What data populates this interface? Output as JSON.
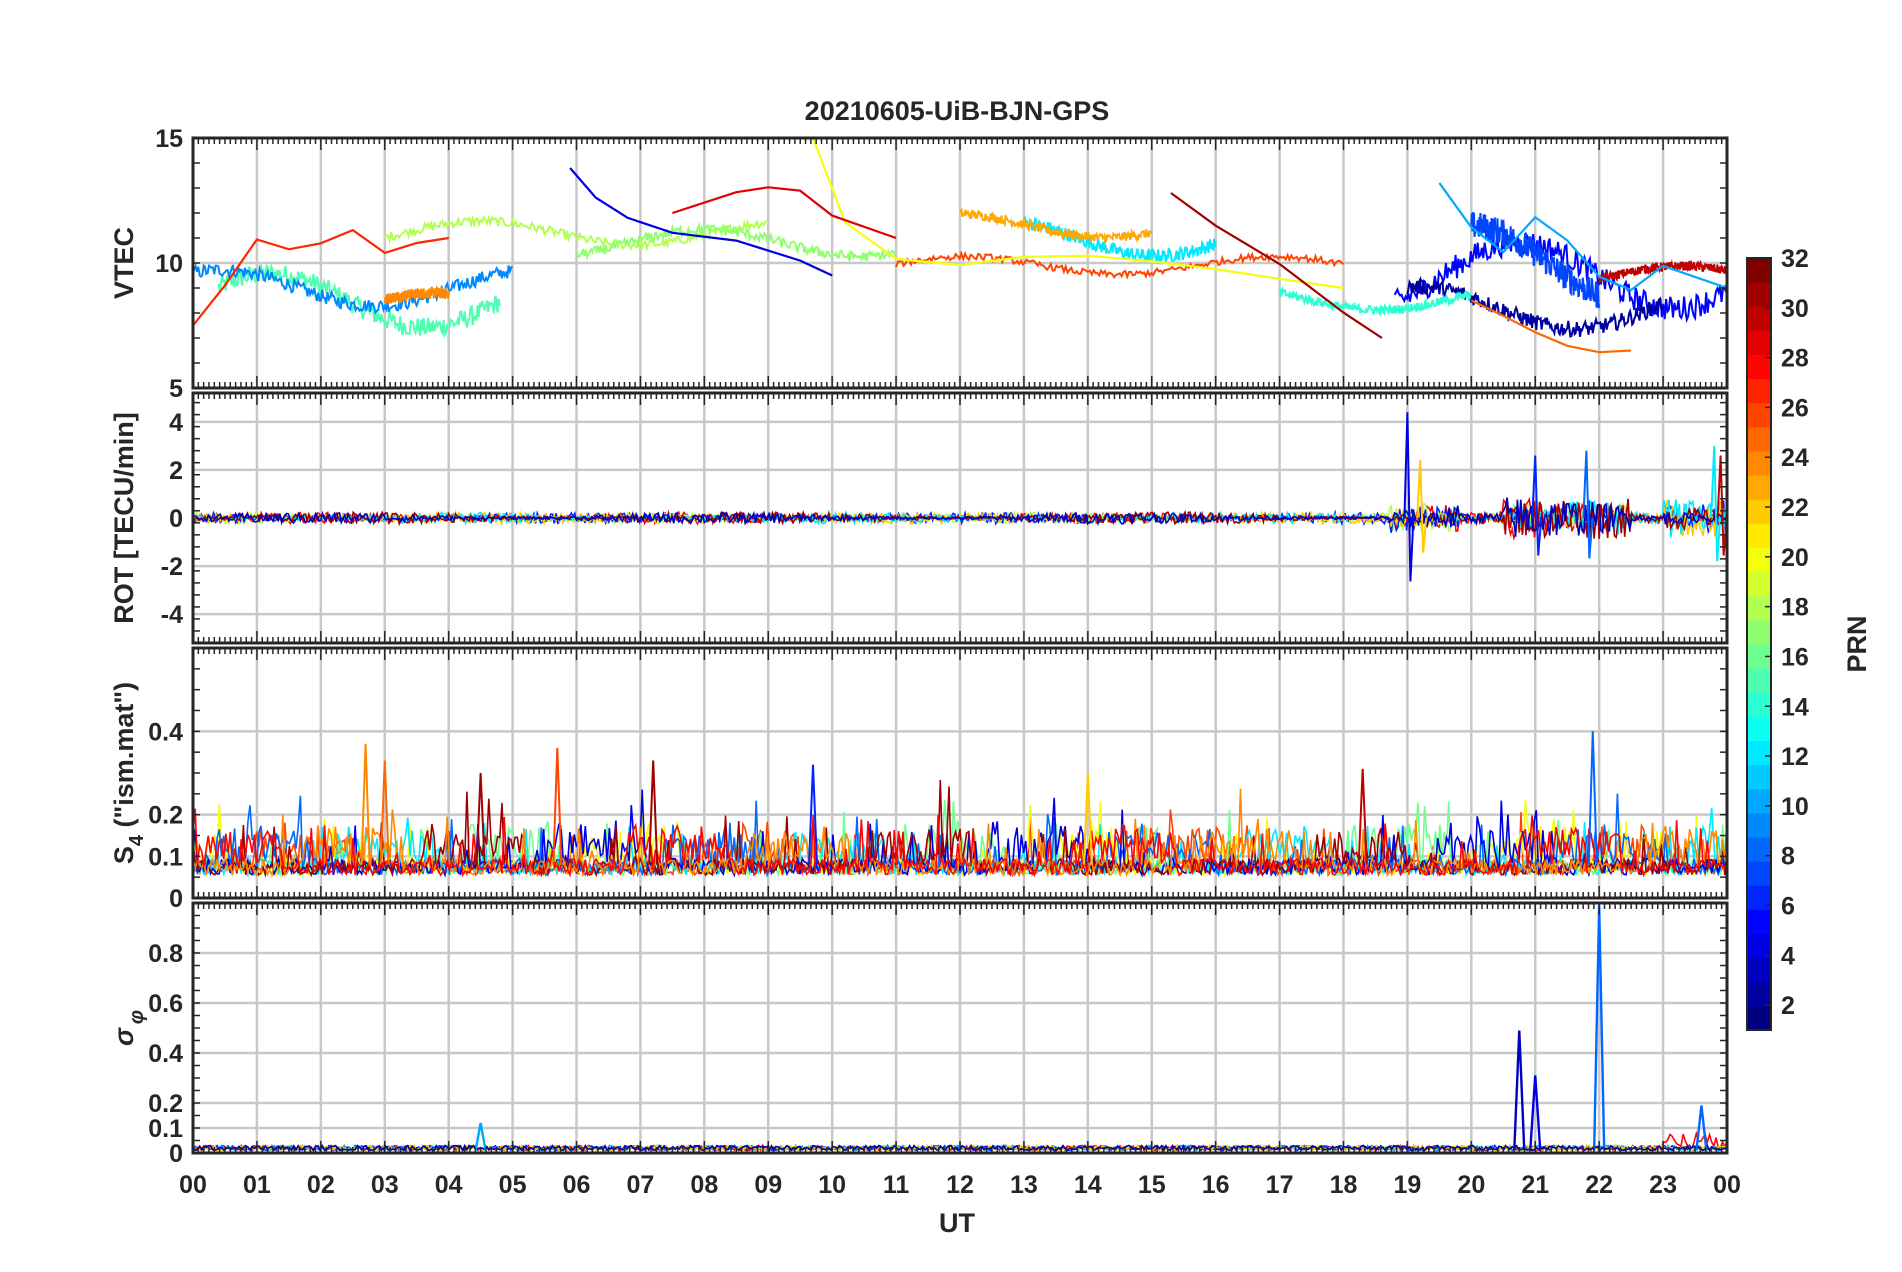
{
  "chart_data": {
    "type": "line",
    "title": "20210605-UiB-BJN-GPS",
    "xlabel": "UT",
    "x_range": [
      0,
      24
    ],
    "x_tick_labels": [
      "00",
      "01",
      "02",
      "03",
      "04",
      "05",
      "06",
      "07",
      "08",
      "09",
      "10",
      "11",
      "12",
      "13",
      "14",
      "15",
      "16",
      "17",
      "18",
      "19",
      "20",
      "21",
      "22",
      "23",
      "00"
    ],
    "grid": true,
    "colormap": "jet",
    "colorbar": {
      "label": "PRN",
      "range": [
        1,
        32
      ],
      "tick_labels": [
        "2",
        "4",
        "6",
        "8",
        "10",
        "12",
        "14",
        "16",
        "18",
        "20",
        "22",
        "24",
        "26",
        "28",
        "30",
        "32"
      ],
      "placement": "right"
    },
    "panels": [
      {
        "ylabel": "VTEC",
        "ylim": [
          5,
          15
        ],
        "y_ticks": [
          "5",
          "10",
          "15"
        ],
        "series_note": "multi-satellite VTEC traces, colored by PRN",
        "series": [
          {
            "prn": 27,
            "x": [
              0,
              0.5,
              1,
              1.5,
              2,
              2.5,
              3,
              3.5,
              4
            ],
            "y": [
              7.5,
              9,
              10.8,
              10.6,
              10.9,
              11.2,
              10.5,
              10.8,
              11
            ]
          },
          {
            "prn": 4,
            "x": [
              5.9,
              6.3,
              6.8,
              7.5,
              8.5,
              9.5,
              10
            ],
            "y": [
              13.8,
              12.5,
              11.8,
              11.3,
              10.8,
              10.2,
              9.5
            ]
          },
          {
            "prn": 20,
            "x": [
              9.7,
              10.2,
              11,
              12,
              13,
              14,
              15,
              16,
              17,
              18
            ],
            "y": [
              15,
              11.5,
              10.2,
              9.8,
              10.3,
              10.4,
              10,
              9.8,
              9.5,
              9
            ]
          },
          {
            "prn": 29,
            "x": [
              7.5,
              8.5,
              9,
              9.5,
              10,
              11
            ],
            "y": [
              12,
              12.8,
              13,
              12.8,
              12,
              11
            ]
          },
          {
            "prn": 10,
            "x": [
              19.5,
              20,
              20.5,
              21,
              21.5,
              22,
              22.5,
              23,
              24
            ],
            "y": [
              13.2,
              11.5,
              10.5,
              11.8,
              10.8,
              9.5,
              9,
              9.8,
              9
            ]
          },
          {
            "prn": 25,
            "x": [
              20,
              20.5,
              21,
              21.5,
              22,
              22.5
            ],
            "y": [
              8.5,
              8,
              7.2,
              6.8,
              6.3,
              6.5
            ]
          },
          {
            "prn": 31,
            "x": [
              15.3,
              16,
              17,
              18,
              18.6
            ],
            "y": [
              12.8,
              11.5,
              10,
              8,
              7
            ]
          }
        ]
      },
      {
        "ylabel": "ROT [TECU/min]",
        "ylim": [
          -5.2,
          5.2
        ],
        "y_ticks": [
          "-4",
          "-2",
          "0",
          "2",
          "4"
        ],
        "series_note": "rate of TEC, noisy around 0 with bursts near 19, 21 and 23-24 UT",
        "bursts": [
          {
            "x": 19.0,
            "amplitude": 4.4,
            "prn": 4
          },
          {
            "x": 19.2,
            "amplitude": 2.4,
            "prn": 22
          },
          {
            "x": 21.0,
            "amplitude": 2.6,
            "prn": 6
          },
          {
            "x": 21.8,
            "amplitude": 2.8,
            "prn": 8
          },
          {
            "x": 23.8,
            "amplitude": 3.0,
            "prn": 12
          },
          {
            "x": 23.9,
            "amplitude": 2.6,
            "prn": 30
          }
        ]
      },
      {
        "ylabel": "S_4 (\"ism.mat\")",
        "ylabel_main": "S",
        "ylabel_sub": "4",
        "ylabel_rest": " (\"ism.mat\")",
        "ylim": [
          0,
          0.6
        ],
        "y_ticks": [
          "0",
          "0.1",
          "0.2",
          "0.4"
        ],
        "series_note": "amplitude scintillation index, baseline ~0.05-0.1 with spikes",
        "peaks": [
          {
            "x": 2.7,
            "y": 0.37,
            "prn": 24
          },
          {
            "x": 3.0,
            "y": 0.33,
            "prn": 25
          },
          {
            "x": 4.5,
            "y": 0.3,
            "prn": 31
          },
          {
            "x": 5.7,
            "y": 0.36,
            "prn": 26
          },
          {
            "x": 7.2,
            "y": 0.33,
            "prn": 31
          },
          {
            "x": 9.7,
            "y": 0.32,
            "prn": 6
          },
          {
            "x": 14.0,
            "y": 0.3,
            "prn": 22
          },
          {
            "x": 18.3,
            "y": 0.31,
            "prn": 30
          },
          {
            "x": 21.9,
            "y": 0.4,
            "prn": 8
          }
        ]
      },
      {
        "ylabel": "σ_φ",
        "ylabel_main": "σ",
        "ylabel_sub": "φ",
        "ylim": [
          0,
          1
        ],
        "y_ticks": [
          "0",
          "0.1",
          "0.2",
          "0.4",
          "0.6",
          "0.8"
        ],
        "series_note": "phase scintillation index, near 0 with spikes near 20.8, 21.0 and 22.0 UT",
        "peaks": [
          {
            "x": 4.5,
            "y": 0.12,
            "prn": 10
          },
          {
            "x": 20.75,
            "y": 0.49,
            "prn": 3
          },
          {
            "x": 21.0,
            "y": 0.31,
            "prn": 4
          },
          {
            "x": 22.0,
            "y": 0.99,
            "prn": 8
          },
          {
            "x": 23.6,
            "y": 0.19,
            "prn": 8
          }
        ]
      }
    ]
  }
}
